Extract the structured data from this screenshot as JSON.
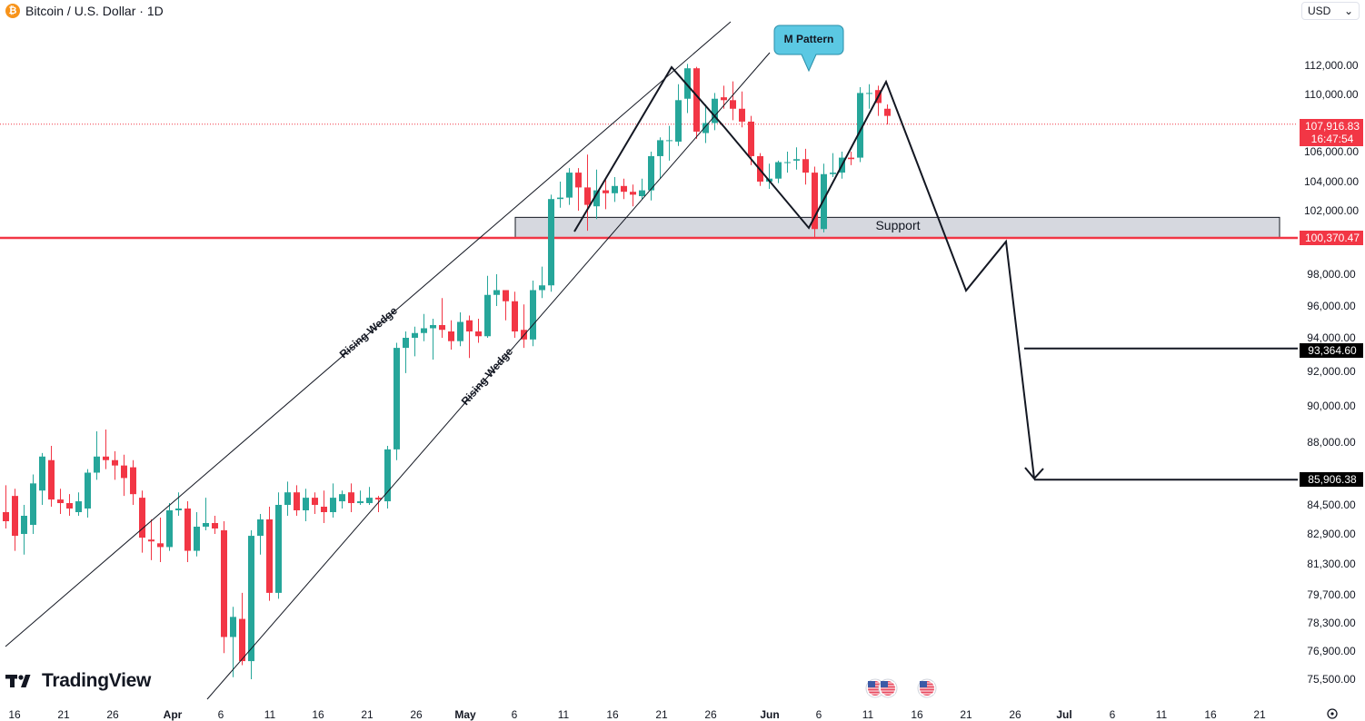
{
  "header": {
    "symbol_icon": "bitcoin-icon",
    "title": "Bitcoin / U.S. Dollar · 1D"
  },
  "currency_select": {
    "value": "USD",
    "icon": "chevron-down-icon"
  },
  "branding": {
    "logo_text": "TradingView"
  },
  "colors": {
    "up": "#26a69a",
    "down": "#f23645",
    "support_line": "#f23645",
    "callout": "#5bc8e3"
  },
  "chart_data": {
    "type": "candlestick",
    "title": "Bitcoin / U.S. Dollar · 1D",
    "price_axis_labels": [
      "112,000.00",
      "110,000.00",
      "106,000.00",
      "104,000.00",
      "102,000.00",
      "98,000.00",
      "96,000.00",
      "94,000.00",
      "92,000.00",
      "90,000.00",
      "88,000.00",
      "84,500.00",
      "82,900.00",
      "81,300.00",
      "79,700.00",
      "78,300.00",
      "76,900.00",
      "75,500.00"
    ],
    "time_axis_labels": [
      "16",
      "21",
      "26",
      "Apr",
      "6",
      "11",
      "16",
      "21",
      "26",
      "May",
      "6",
      "11",
      "16",
      "21",
      "26",
      "Jun",
      "6",
      "11",
      "16",
      "21",
      "26",
      "Jul",
      "6",
      "11",
      "16",
      "21"
    ],
    "price_tags": [
      {
        "label": "current_price",
        "value": "107,916.83",
        "countdown": "16:47:54",
        "style": "red"
      },
      {
        "label": "support_level",
        "value": "100,370.47",
        "style": "red"
      },
      {
        "label": "target_1",
        "value": "93,364.60",
        "style": "black"
      },
      {
        "label": "target_2",
        "value": "85,906.38",
        "style": "black"
      }
    ],
    "annotations": {
      "wedge_upper": "Rising Wedge",
      "wedge_lower": "Rising Wedge",
      "pattern_callout": "M Pattern",
      "support_zone": "Support"
    },
    "candles": [
      [
        84100,
        83600,
        85600,
        83200
      ],
      [
        85000,
        82800,
        85400,
        82000
      ],
      [
        82900,
        83900,
        84500,
        81800
      ],
      [
        83400,
        85700,
        86200,
        82900
      ],
      [
        85300,
        87200,
        87400,
        84500
      ],
      [
        87000,
        84800,
        87800,
        84400
      ],
      [
        84800,
        84600,
        85400,
        84000
      ],
      [
        84600,
        84300,
        85100,
        83900
      ],
      [
        84100,
        84700,
        85200,
        83900
      ],
      [
        84300,
        86300,
        86500,
        83800
      ],
      [
        86300,
        87200,
        88600,
        85900
      ],
      [
        87200,
        87000,
        88700,
        86500
      ],
      [
        87000,
        86700,
        87500,
        85900
      ],
      [
        86700,
        86000,
        87300,
        85000
      ],
      [
        86600,
        85100,
        87000,
        84500
      ],
      [
        84900,
        82700,
        85300,
        81900
      ],
      [
        82600,
        82500,
        83700,
        81500
      ],
      [
        82400,
        82200,
        83800,
        81400
      ],
      [
        82200,
        84200,
        84600,
        82000
      ],
      [
        84200,
        84300,
        85200,
        83900
      ],
      [
        84300,
        82000,
        84700,
        81400
      ],
      [
        82000,
        83300,
        84100,
        81700
      ],
      [
        83300,
        83500,
        84900,
        83100
      ],
      [
        83500,
        83200,
        83900,
        82900
      ],
      [
        83100,
        77600,
        83600,
        76800
      ],
      [
        77600,
        78600,
        79100,
        75600
      ],
      [
        78500,
        76400,
        79800,
        76200
      ],
      [
        76400,
        82800,
        83100,
        75500
      ],
      [
        82800,
        83700,
        84000,
        81800
      ],
      [
        83700,
        79800,
        84400,
        79400
      ],
      [
        79800,
        84500,
        85200,
        79500
      ],
      [
        84500,
        85200,
        85800,
        83900
      ],
      [
        85200,
        84200,
        85600,
        83900
      ],
      [
        84200,
        84900,
        85400,
        83600
      ],
      [
        84900,
        84500,
        85200,
        84000
      ],
      [
        84400,
        84100,
        85300,
        83500
      ],
      [
        84100,
        84900,
        85700,
        83800
      ],
      [
        84700,
        85100,
        85300,
        84300
      ],
      [
        85200,
        84600,
        85700,
        84100
      ],
      [
        84600,
        84700,
        85300,
        84500
      ],
      [
        84600,
        84900,
        85500,
        84500
      ],
      [
        84900,
        84800,
        85000,
        84100
      ],
      [
        84700,
        87600,
        87800,
        84300
      ],
      [
        87600,
        93400,
        93700,
        87000
      ],
      [
        93400,
        94000,
        94400,
        91900
      ],
      [
        94000,
        94300,
        94700,
        92900
      ],
      [
        94300,
        94600,
        95500,
        93800
      ],
      [
        94600,
        94800,
        95200,
        92700
      ],
      [
        94800,
        94500,
        96500,
        94000
      ],
      [
        94400,
        93800,
        95100,
        93300
      ],
      [
        93800,
        95000,
        95600,
        93500
      ],
      [
        95100,
        94400,
        95400,
        92800
      ],
      [
        94400,
        94100,
        95200,
        93700
      ],
      [
        94100,
        96700,
        97900,
        94000
      ],
      [
        96700,
        97000,
        98000,
        96000
      ],
      [
        97000,
        96300,
        97000,
        95100
      ],
      [
        96300,
        94400,
        96900,
        94000
      ],
      [
        94500,
        93900,
        96100,
        93400
      ],
      [
        93900,
        97000,
        97600,
        93500
      ],
      [
        97000,
        97300,
        98500,
        96500
      ],
      [
        97300,
        102800,
        103100,
        96900
      ],
      [
        102800,
        102900,
        104000,
        102200
      ],
      [
        102900,
        104600,
        104900,
        102400
      ],
      [
        104600,
        103600,
        104900,
        102000
      ],
      [
        103600,
        102400,
        105800,
        100800
      ],
      [
        102300,
        103400,
        104800,
        101500
      ],
      [
        103400,
        103200,
        104100,
        102100
      ],
      [
        103200,
        103700,
        104300,
        102600
      ],
      [
        103700,
        103300,
        104200,
        102800
      ],
      [
        103300,
        103100,
        103800,
        102300
      ],
      [
        103000,
        103400,
        104200,
        102800
      ],
      [
        103400,
        105700,
        106000,
        102700
      ],
      [
        105700,
        106800,
        107000,
        104200
      ],
      [
        106800,
        106800,
        107800,
        105400
      ],
      [
        106700,
        109600,
        110700,
        106400
      ],
      [
        109700,
        111800,
        112100,
        108700
      ],
      [
        111800,
        107400,
        111900,
        106900
      ],
      [
        107300,
        108000,
        109300,
        106600
      ],
      [
        108000,
        109700,
        110100,
        107500
      ],
      [
        109800,
        109600,
        110600,
        109000
      ],
      [
        109600,
        109000,
        110900,
        108200
      ],
      [
        109000,
        108100,
        110200,
        107700
      ],
      [
        108100,
        105700,
        108500,
        105100
      ],
      [
        105700,
        104000,
        105900,
        103700
      ],
      [
        104000,
        104200,
        105200,
        103500
      ],
      [
        104200,
        105300,
        105400,
        103900
      ],
      [
        105300,
        105300,
        106000,
        104600
      ],
      [
        105400,
        105500,
        106300,
        104800
      ],
      [
        105500,
        104600,
        106200,
        103800
      ],
      [
        104600,
        100900,
        105000,
        100400
      ],
      [
        100900,
        104500,
        105200,
        100700
      ],
      [
        104500,
        104600,
        105900,
        104300
      ],
      [
        104600,
        105600,
        106000,
        104200
      ],
      [
        105600,
        105500,
        106000,
        105100
      ],
      [
        105600,
        110100,
        110500,
        105300
      ],
      [
        110100,
        110100,
        110700,
        109000
      ],
      [
        110300,
        109400,
        110600,
        108500
      ],
      [
        109000,
        108500,
        109300,
        107900
      ]
    ]
  }
}
